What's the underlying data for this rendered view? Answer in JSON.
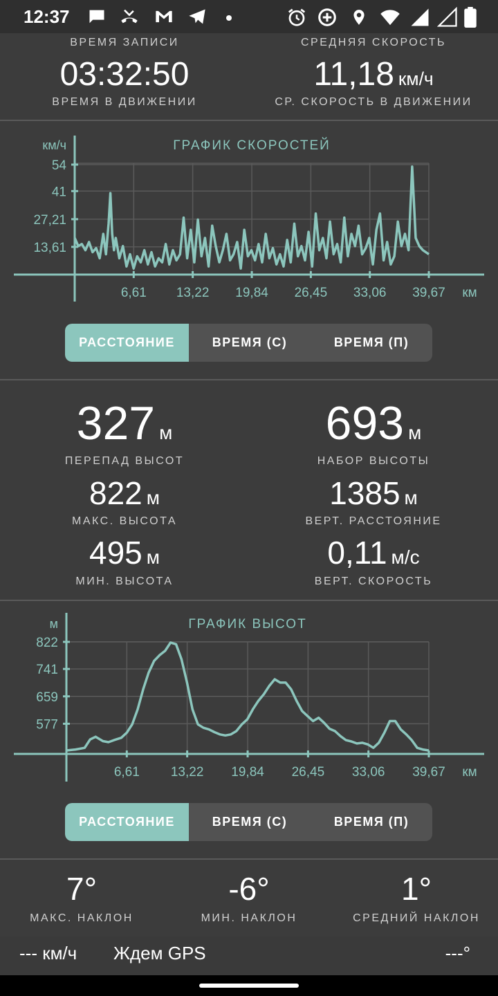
{
  "status_bar": {
    "time": "12:37",
    "left_icons": [
      "chat-bubble-icon",
      "missed-call-icon",
      "gmail-icon",
      "telegram-icon",
      "dot-icon"
    ],
    "right_icons": [
      "alarm-icon",
      "data-saver-icon",
      "location-icon",
      "wifi-icon",
      "cell-signal-icon",
      "cell-signal-empty-icon",
      "battery-icon"
    ]
  },
  "summary": {
    "record_time_label": "ВРЕМЯ ЗАПИСИ",
    "record_time_value": "03:32:50",
    "moving_time_label": "ВРЕМЯ В ДВИЖЕНИИ",
    "avg_speed_label": "СРЕДНЯЯ СКОРОСТЬ",
    "avg_speed_value": "11,18",
    "avg_speed_unit": "км/ч",
    "moving_avg_label": "СР. СКОРОСТЬ В ДВИЖЕНИИ"
  },
  "speed_chart": {
    "title": "ГРАФИК СКОРОСТЕЙ",
    "y_unit": "км/ч",
    "x_unit": "км",
    "y_ticks": [
      "54",
      "41",
      "27,21",
      "13,61"
    ],
    "x_ticks": [
      "6,61",
      "13,22",
      "19,84",
      "26,45",
      "33,06",
      "39,67"
    ]
  },
  "speed_tabs": [
    "РАССТОЯНИЕ",
    "ВРЕМЯ (С)",
    "ВРЕМЯ (П)"
  ],
  "elevation_stats": {
    "elev_diff_value": "327",
    "elev_diff_unit": "м",
    "elev_diff_label": "ПЕРЕПАД ВЫСОТ",
    "elev_gain_value": "693",
    "elev_gain_unit": "м",
    "elev_gain_label": "НАБОР ВЫСОТЫ",
    "max_alt_value": "822",
    "max_alt_unit": "м",
    "max_alt_label": "МАКС. ВЫСОТА",
    "vert_dist_value": "1385",
    "vert_dist_unit": "м",
    "vert_dist_label": "ВЕРТ. РАССТОЯНИЕ",
    "min_alt_value": "495",
    "min_alt_unit": "м",
    "min_alt_label": "МИН. ВЫСОТА",
    "vert_speed_value": "0,11",
    "vert_speed_unit": "м/с",
    "vert_speed_label": "ВЕРТ. СКОРОСТЬ"
  },
  "elevation_chart": {
    "title": "ГРАФИК ВЫСОТ",
    "y_unit": "м",
    "x_unit": "км",
    "y_ticks": [
      "822",
      "741",
      "659",
      "577"
    ],
    "x_ticks": [
      "6,61",
      "13,22",
      "19,84",
      "26,45",
      "33,06",
      "39,67"
    ]
  },
  "elevation_tabs": [
    "РАССТОЯНИЕ",
    "ВРЕМЯ (С)",
    "ВРЕМЯ (П)"
  ],
  "slope": {
    "max_value": "7°",
    "max_label": "МАКС. НАКЛОН",
    "min_value": "-6°",
    "min_label": "МИН. НАКЛОН",
    "avg_value": "1°",
    "avg_label": "СРЕДНИЙ НАКЛОН"
  },
  "bottom_bar": {
    "speed": "--- км/ч",
    "gps_status": "Ждем GPS",
    "heading": "---°"
  },
  "colors": {
    "accent": "#8cc6bd",
    "background": "#3c3c3c",
    "tab_inactive": "#525252"
  },
  "chart_data": [
    {
      "type": "line",
      "title": "ГРАФИК СКОРОСТЕЙ",
      "xlabel": "км",
      "ylabel": "км/ч",
      "xlim": [
        0,
        39.67
      ],
      "ylim": [
        0,
        54
      ],
      "x_ticks": [
        6.61,
        13.22,
        19.84,
        26.45,
        33.06,
        39.67
      ],
      "y_ticks": [
        13.61,
        27.21,
        41,
        54
      ],
      "grid": true,
      "series": [
        {
          "x": [
            0,
            0.4,
            0.8,
            1.2,
            1.6,
            2.0,
            2.4,
            2.8,
            3.2,
            3.5,
            3.8,
            4.0,
            4.2,
            4.4,
            4.6,
            5.0,
            5.4,
            5.8,
            6.2,
            6.6,
            7.0,
            7.4,
            7.8,
            8.2,
            8.6,
            9.0,
            9.4,
            9.8,
            10.2,
            10.6,
            11.0,
            11.4,
            11.8,
            12.2,
            12.6,
            13.0,
            13.4,
            13.8,
            14.2,
            14.6,
            15.0,
            15.4,
            15.8,
            16.2,
            16.6,
            17.0,
            17.4,
            17.8,
            18.2,
            18.6,
            19.0,
            19.4,
            19.8,
            20.2,
            20.6,
            21.0,
            21.4,
            21.8,
            22.2,
            22.6,
            23.0,
            23.4,
            23.8,
            24.2,
            24.6,
            25.0,
            25.4,
            25.8,
            26.2,
            26.6,
            27.0,
            27.4,
            27.8,
            28.2,
            28.6,
            29.0,
            29.4,
            29.8,
            30.2,
            30.6,
            31.0,
            31.4,
            31.8,
            32.2,
            32.6,
            33.0,
            33.4,
            33.8,
            34.2,
            34.6,
            35.0,
            35.4,
            35.8,
            36.2,
            36.6,
            37.0,
            37.4,
            37.8,
            38.2,
            38.6,
            39.0,
            39.67
          ],
          "y": [
            18,
            14,
            15,
            12,
            16,
            11,
            13,
            8,
            20,
            10,
            25,
            40,
            20,
            12,
            18,
            8,
            14,
            4,
            10,
            3,
            9,
            6,
            12,
            5,
            11,
            4,
            8,
            6,
            15,
            5,
            12,
            7,
            10,
            28,
            8,
            22,
            6,
            27,
            9,
            18,
            4,
            24,
            14,
            6,
            12,
            20,
            7,
            10,
            16,
            3,
            22,
            9,
            12,
            7,
            15,
            6,
            20,
            8,
            13,
            5,
            10,
            4,
            17,
            6,
            25,
            9,
            14,
            7,
            21,
            4,
            30,
            12,
            18,
            8,
            26,
            10,
            15,
            6,
            28,
            9,
            20,
            14,
            24,
            10,
            13,
            18,
            5,
            22,
            30,
            7,
            16,
            5,
            9,
            26,
            14,
            20,
            12,
            53,
            18,
            14,
            12,
            10
          ]
        }
      ]
    },
    {
      "type": "line",
      "title": "ГРАФИК ВЫСОТ",
      "xlabel": "км",
      "ylabel": "м",
      "xlim": [
        0,
        39.67
      ],
      "ylim": [
        495,
        822
      ],
      "x_ticks": [
        6.61,
        13.22,
        19.84,
        26.45,
        33.06,
        39.67
      ],
      "y_ticks": [
        577,
        659,
        741,
        822
      ],
      "grid": true,
      "series": [
        {
          "x": [
            0,
            1,
            2,
            2.6,
            3.2,
            4,
            4.6,
            5.2,
            6,
            6.6,
            7.2,
            7.8,
            8.4,
            9,
            9.6,
            10.2,
            10.8,
            11.4,
            12,
            12.6,
            13.2,
            13.8,
            14.4,
            15,
            15.6,
            16.2,
            16.8,
            17.4,
            18,
            18.6,
            19.2,
            19.8,
            20.4,
            21,
            21.6,
            22.2,
            22.8,
            23.4,
            24,
            24.6,
            25.2,
            25.8,
            26.4,
            27,
            27.6,
            28.2,
            28.8,
            29.4,
            30,
            30.6,
            31.2,
            31.8,
            32.4,
            33,
            33.6,
            34.2,
            34.8,
            35.4,
            36,
            36.6,
            37.2,
            37.8,
            38.4,
            39,
            39.67
          ],
          "y": [
            497,
            500,
            505,
            530,
            538,
            525,
            522,
            528,
            535,
            550,
            575,
            620,
            680,
            730,
            765,
            782,
            795,
            820,
            815,
            770,
            700,
            620,
            575,
            565,
            560,
            552,
            545,
            542,
            545,
            555,
            575,
            590,
            620,
            645,
            665,
            690,
            710,
            700,
            700,
            680,
            645,
            615,
            600,
            585,
            595,
            580,
            562,
            555,
            540,
            528,
            524,
            518,
            520,
            515,
            505,
            520,
            550,
            585,
            585,
            560,
            545,
            528,
            505,
            500,
            497
          ]
        }
      ]
    }
  ]
}
